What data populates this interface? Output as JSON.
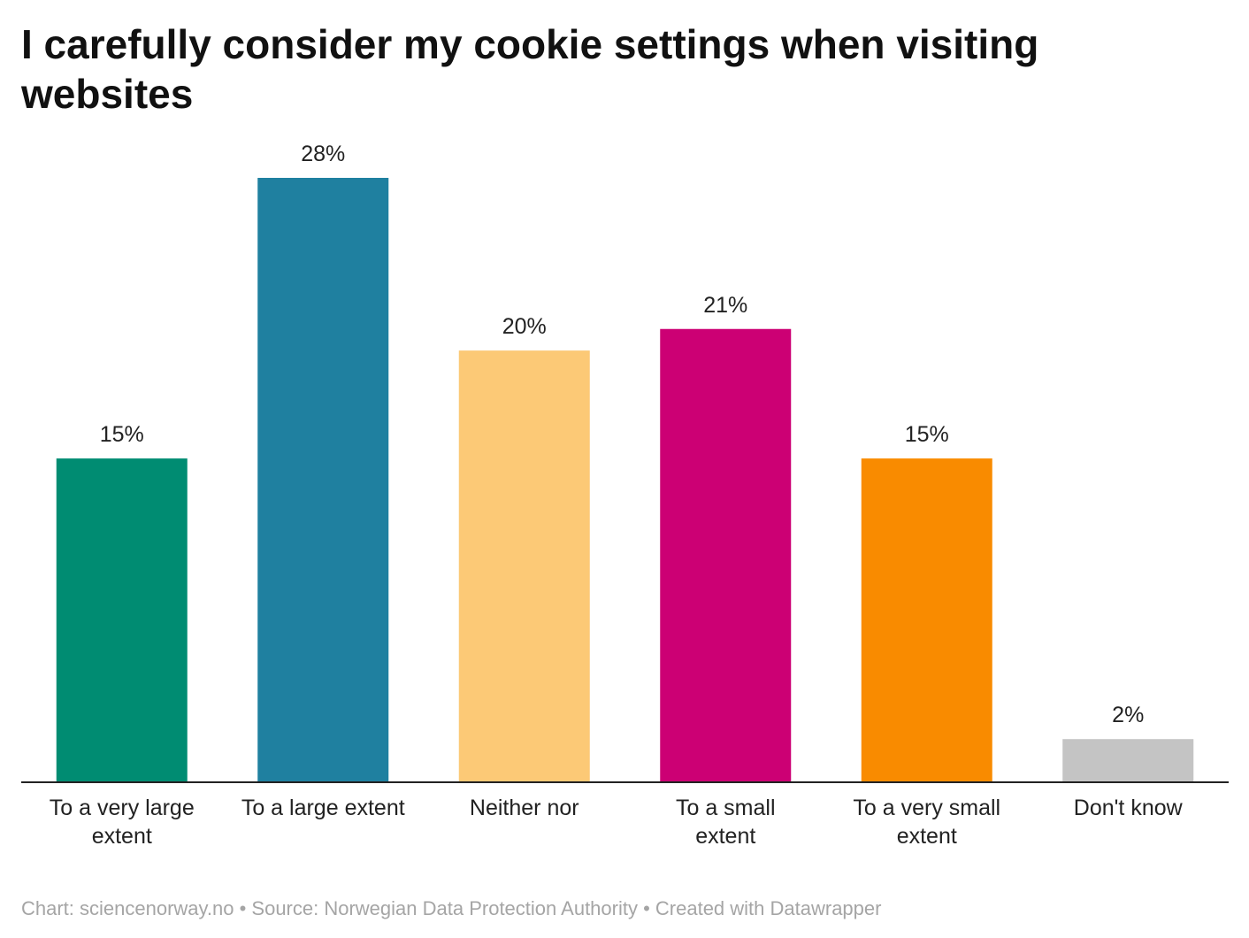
{
  "title": "I carefully consider my cookie settings when visiting websites",
  "footer": {
    "text": "Chart: sciencenorway.no • Source: Norwegian Data Protection Authority • Created with Datawrapper"
  },
  "chart_data": {
    "type": "bar",
    "title": "I carefully consider my cookie settings when visiting websites",
    "xlabel": "",
    "ylabel": "",
    "ylim": [
      0,
      28
    ],
    "grid": false,
    "legend": "none",
    "categories": [
      [
        "To a very large",
        "extent"
      ],
      [
        "To a large extent"
      ],
      [
        "Neither nor"
      ],
      [
        "To a small",
        "extent"
      ],
      [
        "To a very small",
        "extent"
      ],
      [
        "Don't know"
      ]
    ],
    "values": [
      15,
      28,
      20,
      21,
      15,
      2
    ],
    "value_labels": [
      "15%",
      "28%",
      "20%",
      "21%",
      "15%",
      "2%"
    ],
    "colors": [
      "#008c72",
      "#1f80a0",
      "#fcc976",
      "#cc0074",
      "#f98b00",
      "#c4c4c4"
    ],
    "axis_color": "#222222"
  }
}
